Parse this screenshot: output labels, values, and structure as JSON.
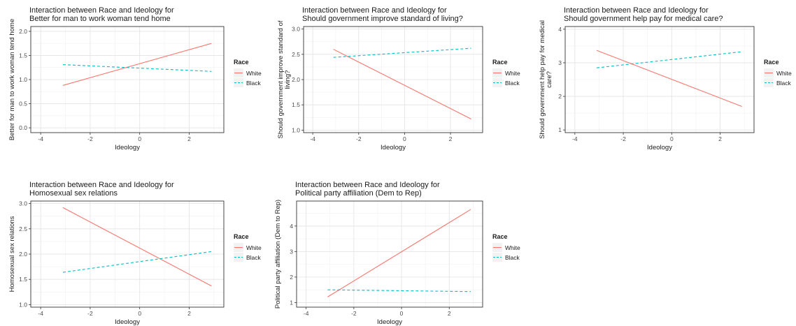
{
  "chart_data": [
    {
      "type": "line",
      "title": "Interaction between Race and Ideology for\nBetter for man to work woman tend home",
      "xlabel": "Ideology",
      "ylabel": "Better for man to work woman tend home",
      "xlim": [
        -4.4,
        3.4
      ],
      "ylim": [
        -0.1,
        2.1
      ],
      "xticks": [
        -4,
        -2,
        0,
        2
      ],
      "yticks": [
        0.0,
        0.5,
        1.0,
        1.5,
        2.0
      ],
      "ytick_labels": [
        "0.0",
        "0.5",
        "1.0",
        "1.5",
        "2.0"
      ],
      "grid": true,
      "legend": {
        "title": "Race",
        "position": "right"
      },
      "series": [
        {
          "name": "White",
          "x": [
            -3.1,
            2.9
          ],
          "values": [
            0.88,
            1.75
          ],
          "color": "#F8766D",
          "dash": "solid"
        },
        {
          "name": "Black",
          "x": [
            -3.1,
            2.9
          ],
          "values": [
            1.31,
            1.17
          ],
          "color": "#00BFC4",
          "dash": "dashed"
        }
      ]
    },
    {
      "type": "line",
      "title": "Interaction between Race and Ideology for\nShould government improve standard of living?",
      "xlabel": "Ideology",
      "ylabel": "Should government improve standard of\nliving?",
      "xlim": [
        -4.4,
        3.4
      ],
      "ylim": [
        0.95,
        3.05
      ],
      "xticks": [
        -4,
        -2,
        0,
        2
      ],
      "yticks": [
        1.0,
        1.5,
        2.0,
        2.5,
        3.0
      ],
      "ytick_labels": [
        "1.0",
        "1.5",
        "2.0",
        "2.5",
        "3.0"
      ],
      "grid": true,
      "legend": {
        "title": "Race",
        "position": "right"
      },
      "series": [
        {
          "name": "White",
          "x": [
            -3.1,
            2.9
          ],
          "values": [
            2.6,
            1.22
          ],
          "color": "#F8766D",
          "dash": "solid"
        },
        {
          "name": "Black",
          "x": [
            -3.1,
            2.9
          ],
          "values": [
            2.44,
            2.62
          ],
          "color": "#00BFC4",
          "dash": "dashed"
        }
      ]
    },
    {
      "type": "line",
      "title": "Interaction between Race and Ideology for\nShould government help pay for medical care?",
      "xlabel": "Ideology",
      "ylabel": "Should government help pay for medical\ncare?",
      "xlim": [
        -4.4,
        3.4
      ],
      "ylim": [
        0.92,
        4.08
      ],
      "xticks": [
        -4,
        -2,
        0,
        2
      ],
      "yticks": [
        1,
        2,
        3,
        4
      ],
      "ytick_labels": [
        "1",
        "2",
        "3",
        "4"
      ],
      "grid": true,
      "legend": {
        "title": "Race",
        "position": "right"
      },
      "series": [
        {
          "name": "White",
          "x": [
            -3.1,
            2.9
          ],
          "values": [
            3.37,
            1.7
          ],
          "color": "#F8766D",
          "dash": "solid"
        },
        {
          "name": "Black",
          "x": [
            -3.1,
            2.9
          ],
          "values": [
            2.85,
            3.33
          ],
          "color": "#00BFC4",
          "dash": "dashed"
        }
      ]
    },
    {
      "type": "line",
      "title": "Interaction between Race and Ideology for\nHomosexual sex relations",
      "xlabel": "Ideology",
      "ylabel": "Homosexual sex relations",
      "xlim": [
        -4.4,
        3.4
      ],
      "ylim": [
        0.95,
        3.05
      ],
      "xticks": [
        -4,
        -2,
        0,
        2
      ],
      "yticks": [
        1.0,
        1.5,
        2.0,
        2.5,
        3.0
      ],
      "ytick_labels": [
        "1.0",
        "1.5",
        "2.0",
        "2.5",
        "3.0"
      ],
      "grid": true,
      "legend": {
        "title": "Race",
        "position": "right"
      },
      "series": [
        {
          "name": "White",
          "x": [
            -3.1,
            2.9
          ],
          "values": [
            2.92,
            1.37
          ],
          "color": "#F8766D",
          "dash": "solid"
        },
        {
          "name": "Black",
          "x": [
            -3.1,
            2.9
          ],
          "values": [
            1.64,
            2.05
          ],
          "color": "#00BFC4",
          "dash": "dashed"
        }
      ]
    },
    {
      "type": "line",
      "title": "Interaction between Race and Ideology for\nPolitical party affiliation (Dem to Rep)",
      "xlabel": "Ideology",
      "ylabel": "Political party affiliation (Dem to Rep)",
      "xlim": [
        -4.4,
        3.4
      ],
      "ylim": [
        0.82,
        4.98
      ],
      "xticks": [
        -4,
        -2,
        0,
        2
      ],
      "yticks": [
        1,
        2,
        3,
        4
      ],
      "ytick_labels": [
        "1",
        "2",
        "3",
        "4"
      ],
      "grid": true,
      "legend": {
        "title": "Race",
        "position": "right"
      },
      "series": [
        {
          "name": "White",
          "x": [
            -3.1,
            2.9
          ],
          "values": [
            1.22,
            4.65
          ],
          "color": "#F8766D",
          "dash": "solid"
        },
        {
          "name": "Black",
          "x": [
            -3.1,
            2.9
          ],
          "values": [
            1.5,
            1.43
          ],
          "color": "#00BFC4",
          "dash": "dashed"
        }
      ]
    }
  ]
}
